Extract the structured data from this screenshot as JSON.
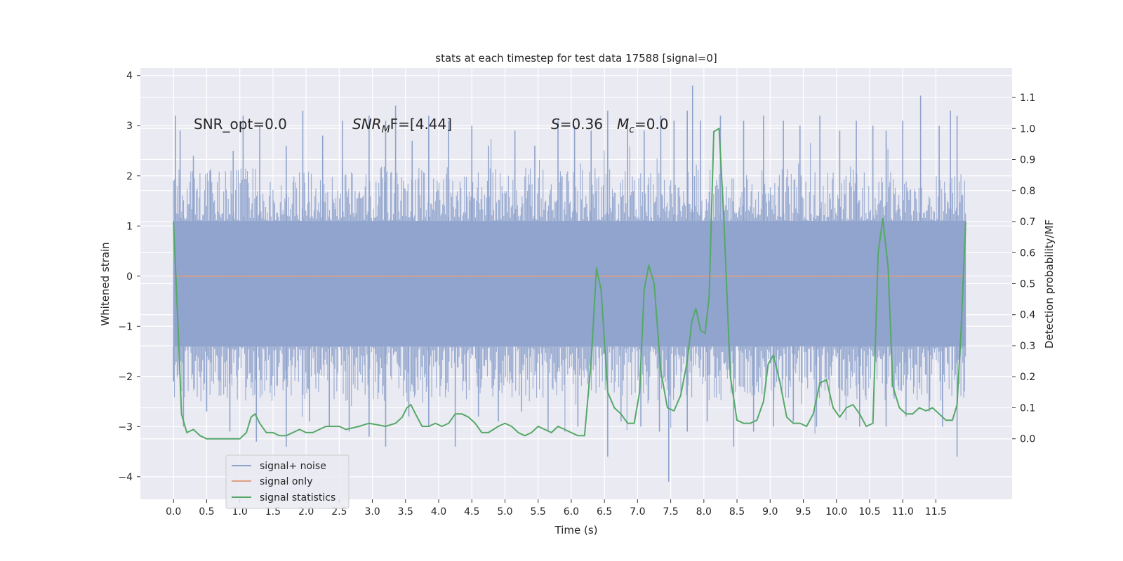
{
  "chart_data": {
    "type": "line",
    "title": "stats at each timestep for test data 17588 [signal=0]",
    "xlabel": "Time (s)",
    "ylabel_left": "Whitened strain",
    "ylabel_right": "Detection probability/MF",
    "xlim": [
      -0.5,
      12.65
    ],
    "ylim_left": [
      -4.45,
      4.15
    ],
    "ylim_right": [
      -0.195,
      1.195
    ],
    "x_ticks": [
      0.0,
      0.5,
      1.0,
      1.5,
      2.0,
      2.5,
      3.0,
      3.5,
      4.0,
      4.5,
      5.0,
      5.5,
      6.0,
      6.5,
      7.0,
      7.5,
      8.0,
      8.5,
      9.0,
      9.5,
      10.0,
      10.5,
      11.0,
      11.5
    ],
    "y_ticks_left": [
      -4,
      -3,
      -2,
      -1,
      0,
      1,
      2,
      3,
      4
    ],
    "y_ticks_right": [
      0.0,
      0.1,
      0.2,
      0.3,
      0.4,
      0.5,
      0.6,
      0.7,
      0.8,
      0.9,
      1.0,
      1.1
    ],
    "grid": true,
    "legend_position": "lower-left",
    "annotations": {
      "snr_opt": "SNR_opt=0.0",
      "snr_mf_sym": "SNR",
      "snr_mf_sub": "M",
      "snr_mf_rest": "F=[4.44]",
      "s_sym": "S",
      "s_rest": "=0.36",
      "mc_sym": "M",
      "mc_sub": "c",
      "mc_rest": "=0.0"
    },
    "series": [
      {
        "name": "signal+ noise",
        "axis": "left",
        "color": "#8fa3cc",
        "core_band": [
          -1.4,
          1.1
        ],
        "t_range": [
          0.0,
          11.95
        ],
        "spikes_up": [
          [
            0.03,
            3.2
          ],
          [
            0.1,
            2.9
          ],
          [
            0.3,
            2.4
          ],
          [
            0.55,
            2.1
          ],
          [
            0.9,
            2.5
          ],
          [
            1.05,
            3.2
          ],
          [
            1.3,
            3.0
          ],
          [
            1.7,
            2.6
          ],
          [
            1.95,
            3.3
          ],
          [
            2.25,
            2.8
          ],
          [
            2.55,
            3.1
          ],
          [
            2.95,
            3.2
          ],
          [
            3.2,
            3.1
          ],
          [
            3.35,
            3.4
          ],
          [
            3.6,
            2.7
          ],
          [
            3.85,
            3.2
          ],
          [
            4.15,
            3.1
          ],
          [
            4.5,
            3.0
          ],
          [
            4.75,
            2.6
          ],
          [
            5.15,
            2.9
          ],
          [
            5.45,
            2.6
          ],
          [
            5.8,
            3.1
          ],
          [
            6.05,
            3.0
          ],
          [
            6.3,
            2.9
          ],
          [
            6.55,
            3.3
          ],
          [
            6.85,
            3.1
          ],
          [
            7.1,
            2.9
          ],
          [
            7.35,
            3.2
          ],
          [
            7.55,
            3.1
          ],
          [
            7.75,
            3.3
          ],
          [
            7.83,
            3.8
          ],
          [
            7.95,
            3.1
          ],
          [
            8.25,
            3.2
          ],
          [
            8.6,
            3.1
          ],
          [
            8.9,
            3.2
          ],
          [
            9.2,
            3.1
          ],
          [
            9.45,
            3.0
          ],
          [
            9.75,
            3.2
          ],
          [
            10.05,
            2.9
          ],
          [
            10.3,
            3.1
          ],
          [
            10.55,
            3.0
          ],
          [
            10.75,
            2.9
          ],
          [
            11.0,
            3.1
          ],
          [
            11.27,
            3.6
          ],
          [
            11.55,
            3.0
          ],
          [
            11.72,
            3.3
          ],
          [
            11.82,
            3.2
          ]
        ],
        "spikes_down": [
          [
            0.0,
            -2.1
          ],
          [
            0.15,
            -3.0
          ],
          [
            0.5,
            -2.7
          ],
          [
            0.85,
            -3.1
          ],
          [
            1.25,
            -3.3
          ],
          [
            1.7,
            -3.4
          ],
          [
            2.05,
            -2.9
          ],
          [
            2.35,
            -3.0
          ],
          [
            2.65,
            -3.1
          ],
          [
            2.95,
            -3.2
          ],
          [
            3.2,
            -3.4
          ],
          [
            3.55,
            -2.8
          ],
          [
            3.85,
            -3.0
          ],
          [
            4.25,
            -3.4
          ],
          [
            4.6,
            -2.8
          ],
          [
            4.9,
            -2.9
          ],
          [
            5.25,
            -2.7
          ],
          [
            5.65,
            -3.1
          ],
          [
            6.1,
            -3.0
          ],
          [
            6.55,
            -3.6
          ],
          [
            6.75,
            -2.9
          ],
          [
            7.05,
            -3.0
          ],
          [
            7.33,
            -3.1
          ],
          [
            7.47,
            -4.1
          ],
          [
            7.75,
            -3.1
          ],
          [
            8.05,
            -2.9
          ],
          [
            8.45,
            -3.4
          ],
          [
            8.75,
            -3.1
          ],
          [
            9.05,
            -3.0
          ],
          [
            9.35,
            -2.9
          ],
          [
            9.7,
            -3.0
          ],
          [
            10.05,
            -2.7
          ],
          [
            10.35,
            -3.0
          ],
          [
            10.75,
            -3.0
          ],
          [
            11.05,
            -2.8
          ],
          [
            11.4,
            -2.7
          ],
          [
            11.6,
            -3.0
          ],
          [
            11.82,
            -3.6
          ]
        ]
      },
      {
        "name": "signal only",
        "axis": "left",
        "color": "#dd9e84",
        "x": [
          0.0,
          11.95
        ],
        "y": [
          0.0,
          0.0
        ]
      },
      {
        "name": "signal statistics",
        "axis": "right",
        "color": "#55a868",
        "x": [
          0.0,
          0.08,
          0.12,
          0.2,
          0.3,
          0.4,
          0.5,
          0.6,
          0.8,
          1.0,
          1.1,
          1.17,
          1.23,
          1.3,
          1.4,
          1.5,
          1.6,
          1.7,
          1.8,
          1.9,
          2.0,
          2.1,
          2.2,
          2.3,
          2.4,
          2.5,
          2.6,
          2.8,
          2.95,
          3.2,
          3.35,
          3.45,
          3.52,
          3.58,
          3.65,
          3.75,
          3.85,
          3.95,
          4.05,
          4.15,
          4.25,
          4.35,
          4.45,
          4.55,
          4.65,
          4.75,
          4.9,
          5.0,
          5.1,
          5.2,
          5.3,
          5.4,
          5.5,
          5.6,
          5.7,
          5.8,
          5.9,
          6.0,
          6.1,
          6.2,
          6.3,
          6.38,
          6.45,
          6.55,
          6.65,
          6.75,
          6.85,
          6.95,
          7.03,
          7.1,
          7.17,
          7.25,
          7.35,
          7.45,
          7.55,
          7.65,
          7.75,
          7.82,
          7.88,
          7.95,
          8.02,
          8.08,
          8.15,
          8.23,
          8.3,
          8.4,
          8.5,
          8.6,
          8.7,
          8.8,
          8.9,
          8.97,
          9.05,
          9.15,
          9.25,
          9.35,
          9.45,
          9.55,
          9.65,
          9.75,
          9.85,
          9.95,
          10.05,
          10.15,
          10.25,
          10.35,
          10.45,
          10.55,
          10.63,
          10.7,
          10.78,
          10.85,
          10.95,
          11.05,
          11.15,
          11.25,
          11.35,
          11.45,
          11.55,
          11.65,
          11.75,
          11.82,
          11.88,
          11.95
        ],
        "y": [
          0.7,
          0.3,
          0.08,
          0.02,
          0.03,
          0.01,
          0.0,
          0.0,
          0.0,
          0.0,
          0.02,
          0.07,
          0.08,
          0.05,
          0.02,
          0.02,
          0.01,
          0.01,
          0.02,
          0.03,
          0.02,
          0.02,
          0.03,
          0.04,
          0.04,
          0.04,
          0.03,
          0.04,
          0.05,
          0.04,
          0.05,
          0.07,
          0.1,
          0.11,
          0.08,
          0.04,
          0.04,
          0.05,
          0.04,
          0.05,
          0.08,
          0.08,
          0.07,
          0.05,
          0.02,
          0.02,
          0.04,
          0.05,
          0.04,
          0.02,
          0.01,
          0.02,
          0.04,
          0.03,
          0.02,
          0.04,
          0.03,
          0.02,
          0.01,
          0.01,
          0.25,
          0.55,
          0.48,
          0.15,
          0.1,
          0.08,
          0.05,
          0.05,
          0.15,
          0.48,
          0.56,
          0.5,
          0.22,
          0.1,
          0.09,
          0.14,
          0.25,
          0.38,
          0.42,
          0.35,
          0.34,
          0.46,
          0.99,
          1.0,
          0.72,
          0.2,
          0.06,
          0.05,
          0.05,
          0.06,
          0.12,
          0.24,
          0.27,
          0.18,
          0.07,
          0.05,
          0.05,
          0.04,
          0.08,
          0.18,
          0.19,
          0.1,
          0.07,
          0.1,
          0.11,
          0.08,
          0.04,
          0.05,
          0.6,
          0.71,
          0.55,
          0.17,
          0.1,
          0.08,
          0.08,
          0.1,
          0.09,
          0.1,
          0.08,
          0.06,
          0.06,
          0.11,
          0.35,
          0.7
        ]
      }
    ]
  }
}
